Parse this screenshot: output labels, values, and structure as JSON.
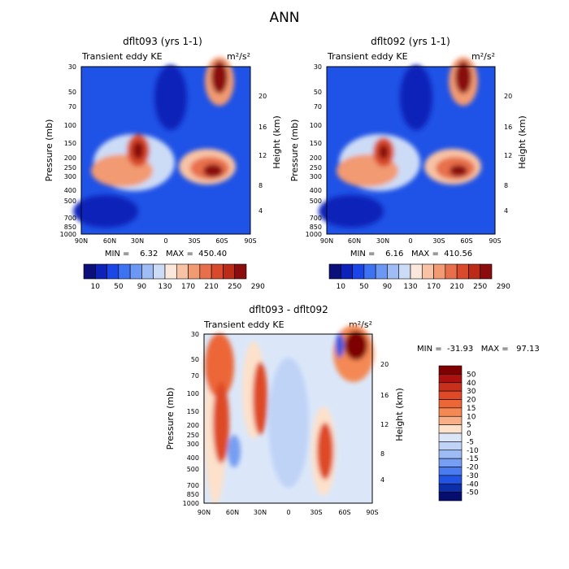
{
  "figure": {
    "title": "ANN"
  },
  "chart_data": [
    {
      "type": "heatmap",
      "title": "dflt093 (yrs 1-1)",
      "subtitle": "Transient eddy KE",
      "units_label": "m²/s²",
      "ylabel_left": "Pressure (mb)",
      "ylabel_right": "Height (km)",
      "x_ticks": [
        "90N",
        "60N",
        "30N",
        "0",
        "30S",
        "60S",
        "90S"
      ],
      "y_ticks": [
        "30",
        "50",
        "70",
        "100",
        "150",
        "200",
        "250",
        "300",
        "400",
        "500",
        "700",
        "850",
        "1000"
      ],
      "height_ticks": [
        "20",
        "16",
        "12",
        "8",
        "4"
      ],
      "stats_text": "MIN =    6.32   MAX =  450.40",
      "min": 6.32,
      "max": 450.4,
      "colorbar_orientation": "horizontal",
      "colorbar_labels": [
        "10",
        "50",
        "90",
        "130",
        "170",
        "210",
        "250",
        "290"
      ],
      "colorbar_colors": [
        "#0b0f7a",
        "#0d22b8",
        "#1a46e8",
        "#3d72f0",
        "#6c97f2",
        "#9fbdf4",
        "#cddcf6",
        "#fbe8dc",
        "#f8c3a4",
        "#f29a72",
        "#e86f4c",
        "#d84a2b",
        "#bb2b17",
        "#8a0c0c"
      ],
      "features": [
        {
          "lat": 25,
          "p": 180,
          "value": 320
        },
        {
          "lat": -55,
          "p": 270,
          "value": 310
        },
        {
          "lat": -55,
          "p": 38,
          "value": 360
        }
      ]
    },
    {
      "type": "heatmap",
      "title": "dflt092 (yrs 1-1)",
      "subtitle": "Transient eddy KE",
      "units_label": "m²/s²",
      "ylabel_left": "Pressure (mb)",
      "ylabel_right": "Height (km)",
      "x_ticks": [
        "90N",
        "60N",
        "30N",
        "0",
        "30S",
        "60S",
        "90S"
      ],
      "y_ticks": [
        "30",
        "50",
        "70",
        "100",
        "150",
        "200",
        "250",
        "300",
        "400",
        "500",
        "700",
        "850",
        "1000"
      ],
      "height_ticks": [
        "20",
        "16",
        "12",
        "8",
        "4"
      ],
      "stats_text": "MIN =    6.16   MAX =  410.56",
      "min": 6.16,
      "max": 410.56,
      "colorbar_orientation": "horizontal",
      "colorbar_labels": [
        "10",
        "50",
        "90",
        "130",
        "170",
        "210",
        "250",
        "290"
      ],
      "colorbar_colors": [
        "#0b0f7a",
        "#0d22b8",
        "#1a46e8",
        "#3d72f0",
        "#6c97f2",
        "#9fbdf4",
        "#cddcf6",
        "#fbe8dc",
        "#f8c3a4",
        "#f29a72",
        "#e86f4c",
        "#d84a2b",
        "#bb2b17",
        "#8a0c0c"
      ],
      "features": [
        {
          "lat": 25,
          "p": 180,
          "value": 300
        },
        {
          "lat": -55,
          "p": 270,
          "value": 290
        },
        {
          "lat": -55,
          "p": 38,
          "value": 340
        }
      ]
    },
    {
      "type": "heatmap",
      "title": "dflt093 - dflt092",
      "subtitle": "Transient eddy KE",
      "units_label": "m²/s²",
      "ylabel_left": "Pressure (mb)",
      "ylabel_right": "Height (km)",
      "x_ticks": [
        "90N",
        "60N",
        "30N",
        "0",
        "30S",
        "60S",
        "90S"
      ],
      "y_ticks": [
        "30",
        "50",
        "70",
        "100",
        "150",
        "200",
        "250",
        "300",
        "400",
        "500",
        "700",
        "850",
        "1000"
      ],
      "height_ticks": [
        "20",
        "16",
        "12",
        "8",
        "4"
      ],
      "stats_text": "MIN =  -31.93   MAX =   97.13",
      "min": -31.93,
      "max": 97.13,
      "colorbar_orientation": "vertical",
      "colorbar_labels": [
        "50",
        "40",
        "30",
        "20",
        "15",
        "10",
        "5",
        "0",
        "-5",
        "-10",
        "-15",
        "-20",
        "-30",
        "-40",
        "-50"
      ],
      "colorbar_colors": [
        "#7f0000",
        "#ac1010",
        "#c9301c",
        "#de4a28",
        "#ec6637",
        "#f48955",
        "#f8ae86",
        "#fde1cb",
        "#dbe7f9",
        "#bfd3f7",
        "#9dbbf5",
        "#769ef2",
        "#4a7cf0",
        "#2154e2",
        "#0c2ea9",
        "#050d6e"
      ],
      "features": [
        {
          "lat": 65,
          "p": 60,
          "value": 25
        },
        {
          "lat": 65,
          "p": 200,
          "value": 15
        },
        {
          "lat": 30,
          "p": 180,
          "value": 20
        },
        {
          "lat": -40,
          "p": 300,
          "value": 22
        },
        {
          "lat": -70,
          "p": 35,
          "value": 50
        },
        {
          "lat": 50,
          "p": 300,
          "value": -8
        },
        {
          "lat": -50,
          "p": 40,
          "value": -20
        }
      ]
    }
  ]
}
